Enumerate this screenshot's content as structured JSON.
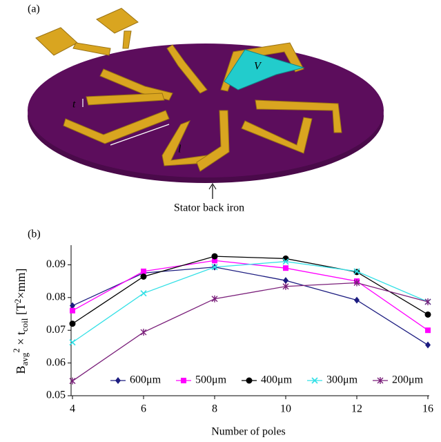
{
  "panel_a": {
    "label": "(a)",
    "thickness_label": "t",
    "length_label": "l",
    "volume_label": "V",
    "caption": "Stator back iron"
  },
  "chart_data": {
    "type": "line",
    "panel_label": "(b)",
    "xlabel": "Number of poles",
    "ylabel_parts": [
      "B",
      "avg",
      "2",
      " × t",
      "coil",
      " [T",
      "2",
      "×mm]"
    ],
    "categories": [
      "4",
      "6",
      "8",
      "10",
      "12",
      "16"
    ],
    "ylim": [
      0.05,
      0.096
    ],
    "yticks": [
      0.05,
      0.06,
      0.07,
      0.08,
      0.09
    ],
    "grid": false,
    "legend": "bottom",
    "series": [
      {
        "name": "600μm",
        "color": "#1c1c80",
        "marker": "diamond",
        "values": [
          0.0775,
          0.0875,
          0.0893,
          0.0852,
          0.0792,
          0.0655
        ]
      },
      {
        "name": "500μm",
        "color": "#ff00ff",
        "marker": "square",
        "values": [
          0.076,
          0.088,
          0.0913,
          0.089,
          0.085,
          0.07
        ]
      },
      {
        "name": "400μm",
        "color": "#000000",
        "marker": "circle",
        "values": [
          0.072,
          0.0864,
          0.0926,
          0.0919,
          0.0878,
          0.0748
        ]
      },
      {
        "name": "300μm",
        "color": "#33e0e6",
        "marker": "x",
        "values": [
          0.0663,
          0.0813,
          0.0893,
          0.091,
          0.088,
          0.0787
        ]
      },
      {
        "name": "200μm",
        "color": "#7a1f7a",
        "marker": "star",
        "values": [
          0.0545,
          0.0694,
          0.0796,
          0.0834,
          0.0845,
          0.0787
        ]
      }
    ]
  }
}
